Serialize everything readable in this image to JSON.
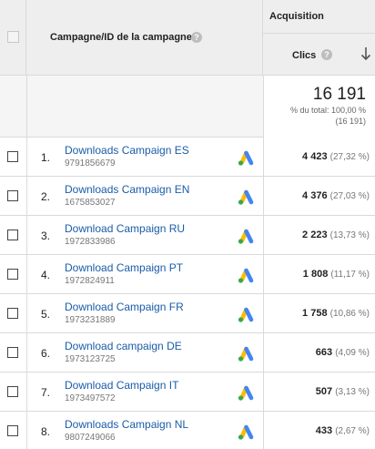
{
  "header": {
    "campaign_label": "Campagne/ID de la campagne",
    "acquisition_label": "Acquisition",
    "clics_label": "Clics",
    "help_glyph": "?"
  },
  "total": {
    "value": "16 191",
    "pct_label": "% du total: 100,00 %",
    "abs_label": "(16 191)"
  },
  "rows": [
    {
      "num": "1.",
      "name": "Downloads Campaign ES",
      "id": "9791856679",
      "clics": "4 423",
      "pct": "(27,32 %)"
    },
    {
      "num": "2.",
      "name": "Downloads Campaign EN",
      "id": "1675853027",
      "clics": "4 376",
      "pct": "(27,03 %)"
    },
    {
      "num": "3.",
      "name": "Download Campaign RU",
      "id": "1972833986",
      "clics": "2 223",
      "pct": "(13,73 %)"
    },
    {
      "num": "4.",
      "name": "Download Campaign PT",
      "id": "1972824911",
      "clics": "1 808",
      "pct": "(11,17 %)"
    },
    {
      "num": "5.",
      "name": "Download Campaign FR",
      "id": "1973231889",
      "clics": "1 758",
      "pct": "(10,86 %)"
    },
    {
      "num": "6.",
      "name": "Download campaign DE",
      "id": "1973123725",
      "clics": "663",
      "pct": "(4,09 %)"
    },
    {
      "num": "7.",
      "name": "Download Campaign IT",
      "id": "1973497572",
      "clics": "507",
      "pct": "(3,13 %)"
    },
    {
      "num": "8.",
      "name": "Downloads Campaign NL",
      "id": "9807249066",
      "clics": "433",
      "pct": "(2,67 %)"
    }
  ],
  "icons": {
    "row_icon": "google-ads-icon",
    "sort_icon": "arrow-down-icon",
    "help_icon": "help-icon"
  },
  "colors": {
    "link": "#1a5ca8",
    "header_bg": "#eeeeee",
    "ads_blue": "#4285f4",
    "ads_yellow": "#fbbc04",
    "ads_green": "#34a853"
  }
}
